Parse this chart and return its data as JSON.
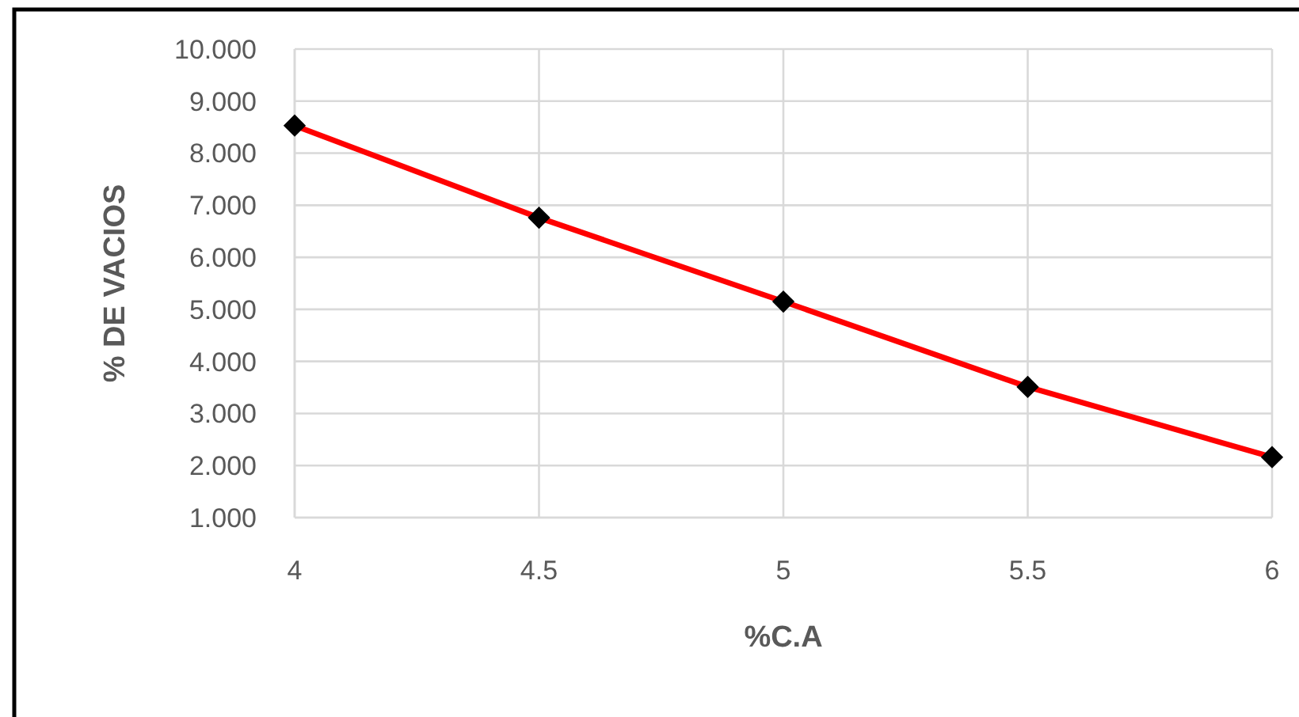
{
  "chart_data": {
    "type": "scatter",
    "xlabel": "%C.A",
    "ylabel": "% DE VACIOS",
    "x": [
      4,
      4.5,
      5,
      5.5,
      6
    ],
    "series": [
      {
        "type": "line",
        "color": "#ff0000",
        "values": [
          8.53,
          6.76,
          5.15,
          3.51,
          2.16
        ],
        "marker": "none"
      },
      {
        "color": "#000000",
        "values": [
          8.53,
          6.76,
          5.15,
          3.51,
          2.16
        ],
        "marker": "diamond"
      }
    ],
    "xlim": [
      4,
      6
    ],
    "xticks": [
      4,
      4.5,
      5,
      5.5,
      6
    ],
    "ylim": [
      1,
      10
    ],
    "yticks": [
      {
        "value": 1,
        "label": "1.000"
      },
      {
        "value": 2,
        "label": "2.000"
      },
      {
        "value": 3,
        "label": "3.000"
      },
      {
        "value": 4,
        "label": "4.000"
      },
      {
        "value": 5,
        "label": "5.000"
      },
      {
        "value": 6,
        "label": "6.000"
      },
      {
        "value": 7,
        "label": "7.000"
      },
      {
        "value": 8,
        "label": "8.000"
      },
      {
        "value": 9,
        "label": "9.000"
      },
      {
        "value": 10,
        "label": "10.000"
      }
    ],
    "grid": true
  }
}
